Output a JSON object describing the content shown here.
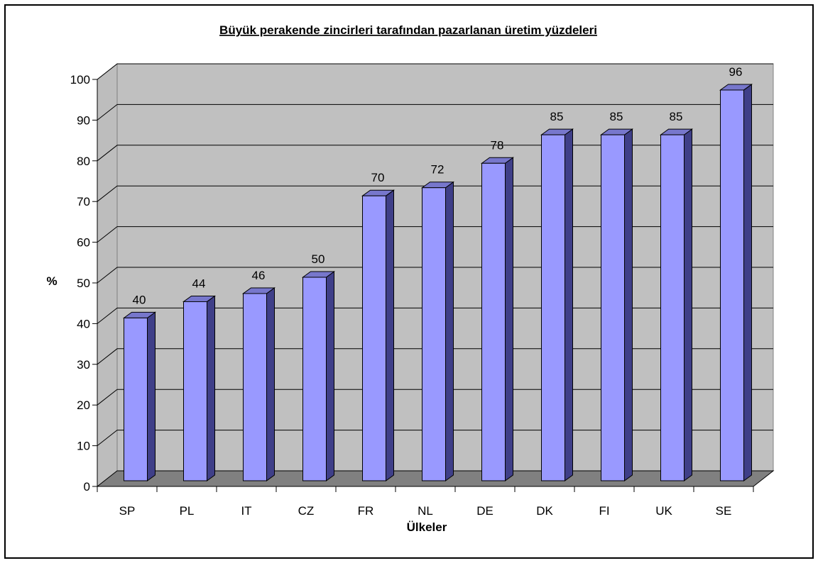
{
  "chart_data": {
    "type": "bar",
    "title": "Büyük perakende zincirleri tarafından pazarlanan üretim yüzdeleri",
    "xlabel": "Ülkeler",
    "ylabel": "%",
    "categories": [
      "SP",
      "PL",
      "IT",
      "CZ",
      "FR",
      "NL",
      "DE",
      "DK",
      "FI",
      "UK",
      "SE"
    ],
    "values": [
      40,
      44,
      46,
      50,
      70,
      72,
      78,
      85,
      85,
      85,
      96
    ],
    "ylim": [
      0,
      100
    ],
    "yticks": [
      0,
      10,
      20,
      30,
      40,
      50,
      60,
      70,
      80,
      90,
      100
    ],
    "grid": true,
    "legend": "none",
    "style": "3d-column",
    "colors": {
      "bar_front": "#9999ff",
      "bar_side": "#3f3f88",
      "bar_top": "#7777cc",
      "back_wall": "#c0c0c0",
      "side_wall": "#bdbdbd",
      "floor": "#808080",
      "gridline": "#000000",
      "frame": "#000000"
    }
  }
}
